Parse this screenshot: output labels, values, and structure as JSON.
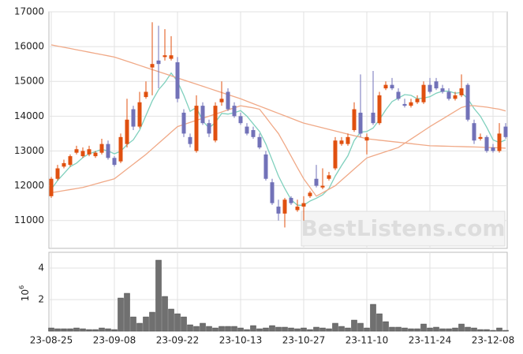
{
  "chart_data": {
    "type": "candlestick",
    "categories": [
      "23-08-25",
      null,
      null,
      null,
      null,
      null,
      null,
      null,
      null,
      null,
      "23-09-08",
      null,
      null,
      null,
      null,
      null,
      null,
      null,
      null,
      null,
      "23-09-22",
      null,
      null,
      null,
      null,
      null,
      null,
      null,
      null,
      null,
      "23-10-13",
      null,
      null,
      null,
      null,
      null,
      null,
      null,
      null,
      null,
      "23-10-27",
      null,
      null,
      null,
      null,
      null,
      null,
      null,
      null,
      null,
      "23-11-10",
      null,
      null,
      null,
      null,
      null,
      null,
      null,
      null,
      null,
      "23-11-24",
      null,
      null,
      null,
      null,
      null,
      null,
      null,
      null,
      null,
      "23-12-08",
      null,
      null
    ],
    "open": [
      11700,
      12200,
      12550,
      12600,
      12950,
      12850,
      12900,
      12850,
      12950,
      13200,
      12800,
      12700,
      13200,
      14200,
      13700,
      14550,
      15400,
      15600,
      15700,
      15650,
      15550,
      14100,
      13400,
      13000,
      14300,
      13800,
      13300,
      14400,
      14700,
      14300,
      14000,
      13700,
      13600,
      13400,
      12900,
      12100,
      11400,
      11200,
      11650,
      11300,
      11400,
      11700,
      12200,
      11950,
      12200,
      12500,
      13200,
      13200,
      13600,
      14100,
      13300,
      14100,
      13800,
      14800,
      14900,
      14700,
      14350,
      14300,
      14400,
      14400,
      14900,
      15000,
      14800,
      14700,
      14500,
      14600,
      14900,
      13800,
      13350,
      13400,
      13100,
      13000,
      13700
    ],
    "high": [
      12250,
      12600,
      12750,
      12900,
      13150,
      13100,
      13150,
      13000,
      13350,
      13300,
      12850,
      13500,
      14500,
      14300,
      14700,
      15000,
      16700,
      16600,
      16500,
      16300,
      15700,
      14200,
      13500,
      14600,
      14400,
      13900,
      14400,
      15000,
      14800,
      14400,
      14100,
      13800,
      13700,
      13500,
      13000,
      12200,
      11600,
      11650,
      11700,
      11600,
      11700,
      11850,
      12600,
      12500,
      12400,
      13400,
      13400,
      13500,
      14400,
      15200,
      13500,
      15300,
      14700,
      15000,
      15100,
      14800,
      14500,
      14500,
      14600,
      15000,
      15100,
      15100,
      14900,
      14800,
      14700,
      15200,
      14950,
      13900,
      13500,
      13450,
      13200,
      13800,
      13800
    ],
    "low": [
      11650,
      12150,
      12500,
      12550,
      12900,
      12800,
      12850,
      12800,
      12900,
      12750,
      12550,
      12650,
      13100,
      13600,
      13650,
      14500,
      14600,
      14800,
      15600,
      15600,
      14400,
      13400,
      13100,
      12950,
      13750,
      13400,
      13250,
      14300,
      14150,
      13950,
      13750,
      13450,
      13350,
      13050,
      12150,
      11450,
      11000,
      10800,
      11450,
      11250,
      11000,
      11650,
      11950,
      11900,
      12150,
      12450,
      13150,
      13150,
      13550,
      13400,
      12900,
      13750,
      13750,
      14750,
      14750,
      14450,
      14250,
      14250,
      14350,
      14350,
      14650,
      14750,
      14650,
      14450,
      14450,
      14550,
      13850,
      13200,
      13300,
      12950,
      12950,
      12950,
      13350
    ],
    "close": [
      12200,
      12500,
      12650,
      12850,
      13050,
      13000,
      13050,
      12950,
      13200,
      12800,
      12600,
      13400,
      13900,
      13700,
      14400,
      14700,
      15500,
      15500,
      15750,
      15750,
      14500,
      13500,
      13200,
      14300,
      13800,
      13500,
      14300,
      14500,
      14200,
      14000,
      13800,
      13500,
      13400,
      13100,
      12200,
      11500,
      11200,
      11600,
      11500,
      11400,
      11500,
      11800,
      12000,
      12000,
      12300,
      13300,
      13300,
      13400,
      14200,
      13500,
      13400,
      13800,
      14600,
      14900,
      14800,
      14500,
      14300,
      14400,
      14500,
      14900,
      14700,
      14800,
      14700,
      14500,
      14600,
      14800,
      13900,
      13300,
      13400,
      13000,
      13000,
      13500,
      13400
    ],
    "up_color": "#e0500f",
    "down_color": "#7272b8",
    "ylim": [
      10200,
      17000
    ],
    "yticks": [
      11000,
      12000,
      13000,
      14000,
      15000,
      16000,
      17000
    ],
    "grid": true,
    "moving_averages": [
      {
        "color": "#7fd0bd",
        "values": [
          11900,
          12150,
          12350,
          12550,
          12650,
          12810,
          12920,
          12980,
          13050,
          13000,
          12920,
          12990,
          13180,
          13320,
          13600,
          14020,
          14440,
          14760,
          14970,
          15240,
          15000,
          14600,
          14140,
          14250,
          13860,
          13660,
          13820,
          14080,
          14060,
          14100,
          14160,
          14000,
          13780,
          13560,
          13200,
          12740,
          12280,
          11920,
          11600,
          11440,
          11440,
          11560,
          11640,
          11740,
          11920,
          12280,
          12580,
          12860,
          13300,
          13540,
          13560,
          13660,
          13900,
          14180,
          14420,
          14520,
          14620,
          14600,
          14500,
          14520,
          14560,
          14660,
          14720,
          14720,
          14660,
          14680,
          14500,
          14220,
          14000,
          13680,
          13320,
          13240,
          13320
        ]
      },
      {
        "color": "#f0a987",
        "values": [
          11800,
          11830,
          11860,
          11890,
          11920,
          11950,
          12000,
          12050,
          12100,
          12150,
          12200,
          12340,
          12480,
          12620,
          12760,
          12900,
          13060,
          13220,
          13380,
          13540,
          13700,
          13760,
          13820,
          13880,
          13940,
          14000,
          14060,
          14120,
          14180,
          14240,
          14300,
          14270,
          14240,
          14200,
          13970,
          13730,
          13500,
          13180,
          12850,
          12520,
          12200,
          11950,
          11700,
          11800,
          11900,
          12000,
          12160,
          12320,
          12480,
          12640,
          12800,
          12860,
          12920,
          12980,
          13040,
          13100,
          13220,
          13340,
          13460,
          13580,
          13700,
          13810,
          13920,
          14030,
          14140,
          14250,
          14300,
          14300,
          14280,
          14260,
          14230,
          14200,
          14150
        ]
      },
      {
        "color": "#f0a987",
        "values": [
          16050,
          16015,
          15980,
          15945,
          15910,
          15875,
          15840,
          15805,
          15770,
          15735,
          15700,
          15640,
          15580,
          15520,
          15460,
          15400,
          15340,
          15280,
          15220,
          15160,
          15100,
          15040,
          14980,
          14920,
          14860,
          14800,
          14740,
          14680,
          14620,
          14560,
          14500,
          14430,
          14360,
          14290,
          14220,
          14150,
          14080,
          14010,
          13940,
          13870,
          13800,
          13755,
          13710,
          13665,
          13620,
          13575,
          13530,
          13485,
          13440,
          13395,
          13350,
          13330,
          13310,
          13290,
          13270,
          13250,
          13230,
          13210,
          13190,
          13170,
          13150,
          13145,
          13140,
          13135,
          13130,
          13125,
          13120,
          13115,
          13110,
          13100,
          13095,
          13090,
          13080
        ]
      }
    ],
    "volume": {
      "color": "#707070",
      "values": [
        0.2,
        0.15,
        0.15,
        0.15,
        0.2,
        0.15,
        0.1,
        0.1,
        0.2,
        0.15,
        0.1,
        2.1,
        2.4,
        0.9,
        0.5,
        0.9,
        1.2,
        4.5,
        2.2,
        1.4,
        1.1,
        0.9,
        0.4,
        0.3,
        0.5,
        0.3,
        0.2,
        0.3,
        0.3,
        0.3,
        0.2,
        0.1,
        0.35,
        0.15,
        0.2,
        0.35,
        0.25,
        0.25,
        0.2,
        0.15,
        0.2,
        0.1,
        0.25,
        0.2,
        0.15,
        0.5,
        0.3,
        0.2,
        0.7,
        0.5,
        0.2,
        1.7,
        1.1,
        0.6,
        0.25,
        0.25,
        0.2,
        0.15,
        0.15,
        0.45,
        0.2,
        0.25,
        0.15,
        0.15,
        0.2,
        0.45,
        0.25,
        0.2,
        0.1,
        0.1,
        0.05,
        0.2,
        0.05
      ],
      "ylim": [
        0,
        5
      ],
      "yticks": [
        2,
        4
      ],
      "scale_base": "10",
      "scale_exponent": "6"
    },
    "watermark": "BestListens.com"
  }
}
